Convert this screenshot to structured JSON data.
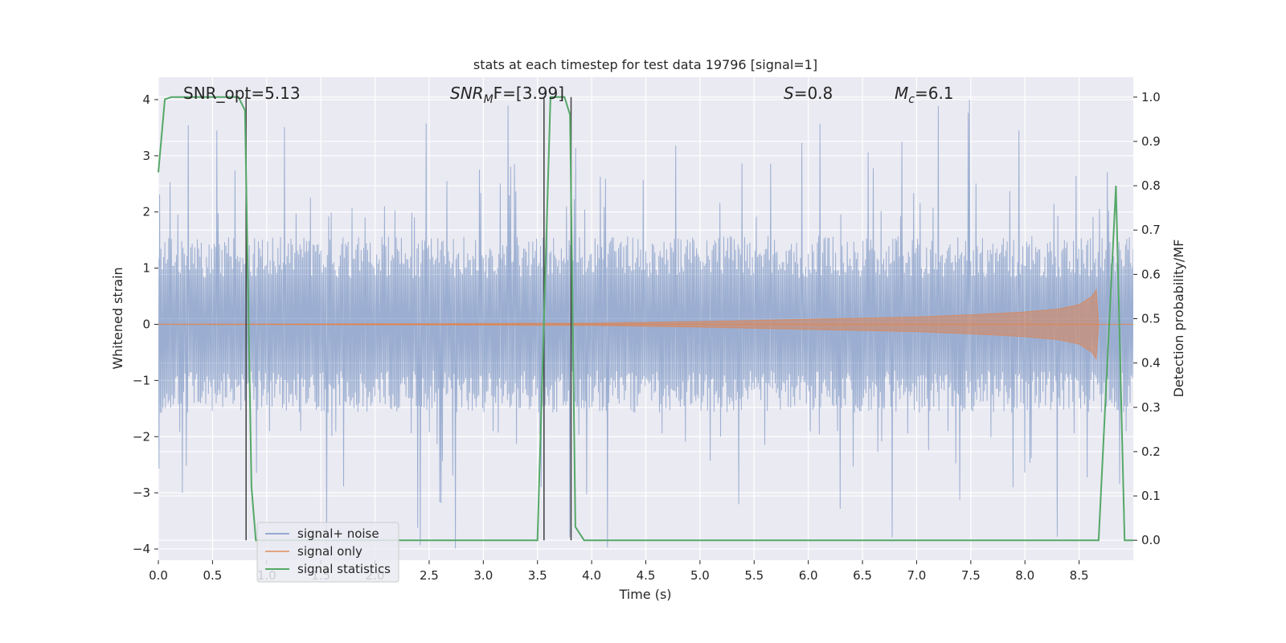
{
  "chart_data": {
    "type": "line",
    "title": "stats at each timestep for test data 19796 [signal=1]",
    "xlabel": "Time (s)",
    "ylabel": "Whitened strain",
    "y2label": "Detection probability/MF",
    "xlim": [
      0.0,
      9.0
    ],
    "ylim": [
      -4.2,
      4.4
    ],
    "y2lim": [
      -0.045,
      1.045
    ],
    "xticks": [
      "0.0",
      "0.5",
      "1.0",
      "1.5",
      "2.0",
      "2.5",
      "3.0",
      "3.5",
      "4.0",
      "4.5",
      "5.0",
      "5.5",
      "6.0",
      "6.5",
      "7.0",
      "7.5",
      "8.0",
      "8.5"
    ],
    "yticks": [
      "−4",
      "−3",
      "−2",
      "−1",
      "0",
      "1",
      "2",
      "3",
      "4"
    ],
    "y2ticks": [
      "0.0",
      "0.1",
      "0.2",
      "0.3",
      "0.4",
      "0.5",
      "0.6",
      "0.7",
      "0.8",
      "0.9",
      "1.0"
    ],
    "grid": true,
    "legend_position": "lower-left",
    "annotations": {
      "snr_opt": "SNR_opt=5.13",
      "snr_mf_symbol": "SNR",
      "snr_mf_sub": "M",
      "snr_mf_rest": "F=[3.99]",
      "s_symbol": "S",
      "s_rest": "=0.8",
      "mc_symbol": "M",
      "mc_sub": "c",
      "mc_rest": "=6.1"
    },
    "vertical_lines_x": [
      0.81,
      3.56,
      3.81
    ],
    "series": [
      {
        "name": "signal+ noise",
        "color": "#4c72b0",
        "opacity": 0.5,
        "noise_band": {
          "typical_amplitude": 1.5,
          "max_peak": 4.0
        }
      },
      {
        "name": "signal only",
        "color": "#dd8452",
        "envelope": {
          "x": [
            0.0,
            4.0,
            5.0,
            6.0,
            7.0,
            7.5,
            8.0,
            8.3,
            8.5,
            8.62,
            8.66,
            8.68
          ],
          "amp": [
            0.0,
            0.02,
            0.05,
            0.09,
            0.13,
            0.17,
            0.22,
            0.27,
            0.35,
            0.5,
            0.62,
            0.0
          ]
        }
      },
      {
        "name": "signal statistics",
        "color": "#55a868",
        "axis": "y2",
        "x": [
          0.0,
          0.06,
          0.12,
          0.5,
          0.74,
          0.8,
          0.86,
          0.9,
          3.5,
          3.56,
          3.62,
          3.67,
          3.75,
          3.8,
          3.85,
          3.93,
          8.68,
          8.76,
          8.84,
          8.92,
          9.0
        ],
        "values": [
          0.83,
          0.995,
          1.0,
          1.0,
          1.0,
          0.97,
          0.12,
          0.0,
          0.0,
          0.5,
          1.0,
          1.0,
          1.0,
          0.96,
          0.03,
          0.0,
          0.0,
          0.4,
          0.8,
          0.0,
          0.0
        ]
      }
    ]
  }
}
